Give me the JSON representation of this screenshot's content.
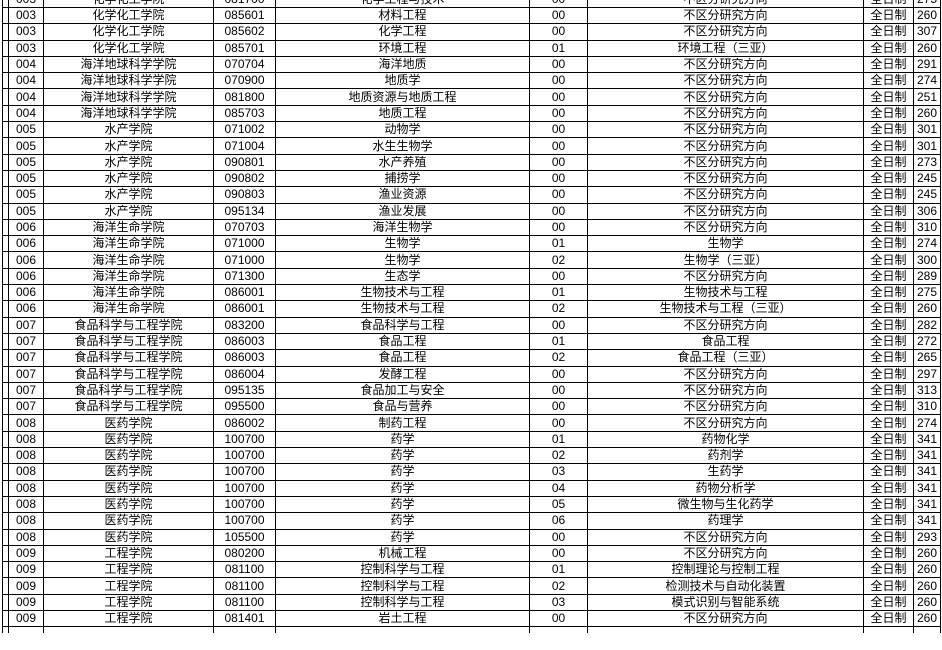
{
  "table": {
    "column_keys": [
      "dept-code",
      "college-name",
      "major-code",
      "major-name",
      "direction-code",
      "research-direction",
      "study-mode",
      "score"
    ],
    "colors": {
      "border": "#000000",
      "text": "#000000",
      "background": "#ffffff"
    },
    "clipped_top_row": [
      "003",
      "化学化工学院",
      "081700",
      "化学工程与技术",
      "00",
      "不区分研究方向",
      "全日制",
      "275"
    ],
    "rows": [
      [
        "003",
        "化学化工学院",
        "085601",
        "材料工程",
        "00",
        "不区分研究方向",
        "全日制",
        "260"
      ],
      [
        "003",
        "化学化工学院",
        "085602",
        "化学工程",
        "00",
        "不区分研究方向",
        "全日制",
        "307"
      ],
      [
        "003",
        "化学化工学院",
        "085701",
        "环境工程",
        "01",
        "环境工程（三亚）",
        "全日制",
        "260"
      ],
      [
        "004",
        "海洋地球科学学院",
        "070704",
        "海洋地质",
        "00",
        "不区分研究方向",
        "全日制",
        "291"
      ],
      [
        "004",
        "海洋地球科学学院",
        "070900",
        "地质学",
        "00",
        "不区分研究方向",
        "全日制",
        "274"
      ],
      [
        "004",
        "海洋地球科学学院",
        "081800",
        "地质资源与地质工程",
        "00",
        "不区分研究方向",
        "全日制",
        "251"
      ],
      [
        "004",
        "海洋地球科学学院",
        "085703",
        "地质工程",
        "00",
        "不区分研究方向",
        "全日制",
        "260"
      ],
      [
        "005",
        "水产学院",
        "071002",
        "动物学",
        "00",
        "不区分研究方向",
        "全日制",
        "301"
      ],
      [
        "005",
        "水产学院",
        "071004",
        "水生生物学",
        "00",
        "不区分研究方向",
        "全日制",
        "301"
      ],
      [
        "005",
        "水产学院",
        "090801",
        "水产养殖",
        "00",
        "不区分研究方向",
        "全日制",
        "273"
      ],
      [
        "005",
        "水产学院",
        "090802",
        "捕捞学",
        "00",
        "不区分研究方向",
        "全日制",
        "245"
      ],
      [
        "005",
        "水产学院",
        "090803",
        "渔业资源",
        "00",
        "不区分研究方向",
        "全日制",
        "245"
      ],
      [
        "005",
        "水产学院",
        "095134",
        "渔业发展",
        "00",
        "不区分研究方向",
        "全日制",
        "306"
      ],
      [
        "006",
        "海洋生命学院",
        "070703",
        "海洋生物学",
        "00",
        "不区分研究方向",
        "全日制",
        "310"
      ],
      [
        "006",
        "海洋生命学院",
        "071000",
        "生物学",
        "01",
        "生物学",
        "全日制",
        "274"
      ],
      [
        "006",
        "海洋生命学院",
        "071000",
        "生物学",
        "02",
        "生物学（三亚）",
        "全日制",
        "300"
      ],
      [
        "006",
        "海洋生命学院",
        "071300",
        "生态学",
        "00",
        "不区分研究方向",
        "全日制",
        "289"
      ],
      [
        "006",
        "海洋生命学院",
        "086001",
        "生物技术与工程",
        "01",
        "生物技术与工程",
        "全日制",
        "275"
      ],
      [
        "006",
        "海洋生命学院",
        "086001",
        "生物技术与工程",
        "02",
        "生物技术与工程（三亚）",
        "全日制",
        "260"
      ],
      [
        "007",
        "食品科学与工程学院",
        "083200",
        "食品科学与工程",
        "00",
        "不区分研究方向",
        "全日制",
        "282"
      ],
      [
        "007",
        "食品科学与工程学院",
        "086003",
        "食品工程",
        "01",
        "食品工程",
        "全日制",
        "272"
      ],
      [
        "007",
        "食品科学与工程学院",
        "086003",
        "食品工程",
        "02",
        "食品工程（三亚）",
        "全日制",
        "265"
      ],
      [
        "007",
        "食品科学与工程学院",
        "086004",
        "发酵工程",
        "00",
        "不区分研究方向",
        "全日制",
        "297"
      ],
      [
        "007",
        "食品科学与工程学院",
        "095135",
        "食品加工与安全",
        "00",
        "不区分研究方向",
        "全日制",
        "313"
      ],
      [
        "007",
        "食品科学与工程学院",
        "095500",
        "食品与营养",
        "00",
        "不区分研究方向",
        "全日制",
        "310"
      ],
      [
        "008",
        "医药学院",
        "086002",
        "制药工程",
        "00",
        "不区分研究方向",
        "全日制",
        "274"
      ],
      [
        "008",
        "医药学院",
        "100700",
        "药学",
        "01",
        "药物化学",
        "全日制",
        "341"
      ],
      [
        "008",
        "医药学院",
        "100700",
        "药学",
        "02",
        "药剂学",
        "全日制",
        "341"
      ],
      [
        "008",
        "医药学院",
        "100700",
        "药学",
        "03",
        "生药学",
        "全日制",
        "341"
      ],
      [
        "008",
        "医药学院",
        "100700",
        "药学",
        "04",
        "药物分析学",
        "全日制",
        "341"
      ],
      [
        "008",
        "医药学院",
        "100700",
        "药学",
        "05",
        "微生物与生化药学",
        "全日制",
        "341"
      ],
      [
        "008",
        "医药学院",
        "100700",
        "药学",
        "06",
        "药理学",
        "全日制",
        "341"
      ],
      [
        "008",
        "医药学院",
        "105500",
        "药学",
        "00",
        "不区分研究方向",
        "全日制",
        "293"
      ],
      [
        "009",
        "工程学院",
        "080200",
        "机械工程",
        "00",
        "不区分研究方向",
        "全日制",
        "260"
      ],
      [
        "009",
        "工程学院",
        "081100",
        "控制科学与工程",
        "01",
        "控制理论与控制工程",
        "全日制",
        "260"
      ],
      [
        "009",
        "工程学院",
        "081100",
        "控制科学与工程",
        "02",
        "检测技术与自动化装置",
        "全日制",
        "260"
      ],
      [
        "009",
        "工程学院",
        "081100",
        "控制科学与工程",
        "03",
        "模式识别与智能系统",
        "全日制",
        "260"
      ],
      [
        "009",
        "工程学院",
        "081401",
        "岩土工程",
        "00",
        "不区分研究方向",
        "全日制",
        "260"
      ]
    ]
  }
}
